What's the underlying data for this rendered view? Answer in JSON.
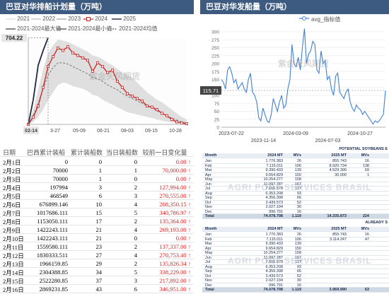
{
  "panel1": {
    "title": "巴豆对华排船计划量（万吨）",
    "legend": [
      {
        "label": "2021",
        "color": "#e0e0e0",
        "style": "line"
      },
      {
        "label": "2022",
        "color": "#c8c8c8",
        "style": "line"
      },
      {
        "label": "2023",
        "color": "#aaaaaa",
        "style": "line"
      },
      {
        "label": "2024",
        "color": "#cc2222",
        "style": "marker"
      },
      {
        "label": "2025",
        "color": "#1f2a44",
        "style": "line"
      },
      {
        "label": "2021-2024最大值",
        "color": "#555555",
        "style": "line"
      },
      {
        "label": "2021-2024最小值",
        "color": "#555555",
        "style": "line"
      },
      {
        "label": "2021-2024均值",
        "color": "#555555",
        "style": "dashed"
      }
    ],
    "pointer_label": "704.22",
    "current_label": "02-14",
    "watermark": "紫金天风期货"
  },
  "panel2": {
    "title": "巴豆对华发船量（万吨）",
    "legend_label": "avg_指标值",
    "pointer_label": "115.71",
    "watermark": "紫金天风期货"
  },
  "shipment_table": {
    "headers": [
      "日期",
      "巴西累计装船",
      "累计装船数",
      "当日装船数",
      "较前一日变化量"
    ],
    "arrow": "↑",
    "rows": [
      {
        "date": "2月1日",
        "cum": "0",
        "count": "0",
        "daily": "0",
        "change": "0.00"
      },
      {
        "date": "2月2日",
        "cum": "70000",
        "count": "1",
        "daily": "1",
        "change": "70,000.00"
      },
      {
        "date": "2月3日",
        "cum": "70000",
        "count": "1",
        "daily": "0",
        "change": "0.00"
      },
      {
        "date": "2月4日",
        "cum": "197994",
        "count": "3",
        "daily": "2",
        "change": "127,994.00"
      },
      {
        "date": "2月5日",
        "cum": "468549",
        "count": "6",
        "daily": "3",
        "change": "270,555.00"
      },
      {
        "date": "2月6日",
        "cum": "676899.146",
        "count": "10",
        "daily": "4",
        "change": "208,350.15"
      },
      {
        "date": "2月7日",
        "cum": "1017686.111",
        "count": "15",
        "daily": "5",
        "change": "340,786.97"
      },
      {
        "date": "2月8日",
        "cum": "1153050.111",
        "count": "17",
        "daily": "2",
        "change": "135,364.00"
      },
      {
        "date": "2月9日",
        "cum": "1422243.111",
        "count": "21",
        "daily": "4",
        "change": "269,193.00"
      },
      {
        "date": "2月10日",
        "cum": "1422243.111",
        "count": "21",
        "daily": "0",
        "change": "0.00"
      },
      {
        "date": "2月11日",
        "cum": "1559580.111",
        "count": "23",
        "daily": "2",
        "change": "137,337.00"
      },
      {
        "date": "2月12日",
        "cum": "1830333.511",
        "count": "27",
        "daily": "4",
        "change": "270,753.40"
      },
      {
        "date": "2月13日",
        "cum": "1966159.85",
        "count": "29",
        "daily": "2",
        "change": "135,826.34"
      },
      {
        "date": "2月14日",
        "cum": "2304388.85",
        "count": "34",
        "daily": "5",
        "change": "338,229.00"
      },
      {
        "date": "2月15日",
        "cum": "2522280.85",
        "count": "37",
        "daily": "3",
        "change": "217,892.00"
      },
      {
        "date": "2月16日",
        "cum": "2869231.85",
        "count": "43",
        "daily": "6",
        "change": "346,951.00"
      }
    ]
  },
  "port_table_1": {
    "title": "POTENTIAL SOYBEANS E",
    "headers": [
      "Month",
      "2024 MT",
      "MVs",
      "2025 MT",
      "MVs"
    ],
    "rows": [
      [
        "Jan",
        "1.776.383",
        "26",
        "855.743",
        "16"
      ],
      [
        "Feb",
        "7.115.011",
        "106",
        "8.920.734",
        "138"
      ],
      [
        "Mar",
        "9.390.433",
        "139",
        "4.529.396",
        "69"
      ],
      [
        "Apr",
        "9.654.829",
        "150",
        "30.000",
        "1"
      ],
      [
        "May",
        "10.254.277",
        "158",
        "",
        ""
      ],
      [
        "Jun",
        "11.097.787",
        "167",
        "",
        ""
      ],
      [
        "Jul",
        "7.616.578",
        "117",
        "",
        ""
      ],
      [
        "Aug",
        "6.353.208",
        "93",
        "",
        ""
      ],
      [
        "Sep",
        "4.356.398",
        "66",
        "",
        ""
      ],
      [
        "Oct",
        "3.439.573",
        "52",
        "",
        ""
      ],
      [
        "Nov",
        "2.027.194",
        "30",
        "",
        ""
      ],
      [
        "Dec",
        "996.791",
        "16",
        "",
        ""
      ],
      [
        "Total",
        "74.078.708",
        "1.119",
        "14.335.873",
        "224"
      ]
    ],
    "watermark": "AGRI PORT SERVICES BRASIL"
  },
  "port_table_2": {
    "title": "ALREADY S",
    "headers": [
      "Month",
      "2024 MT",
      "MVs",
      "2025 MT",
      "MVs"
    ],
    "rows": [
      [
        "Jan",
        "1.776.383",
        "26",
        "855.743",
        "16"
      ],
      [
        "Feb",
        "7.115.011",
        "106",
        "3.114.247",
        "47"
      ],
      [
        "Mar",
        "9.390.433",
        "139",
        "",
        ""
      ],
      [
        "Apr",
        "9.654.829",
        "150",
        "",
        ""
      ],
      [
        "May",
        "10.254.277",
        "158",
        "",
        ""
      ],
      [
        "Jun",
        "11.097.787",
        "167",
        "",
        ""
      ],
      [
        "Jul",
        "7.616.578",
        "117",
        "",
        ""
      ],
      [
        "Aug",
        "6.353.208",
        "93",
        "",
        ""
      ],
      [
        "Sep",
        "4.356.398",
        "66",
        "",
        ""
      ],
      [
        "Oct",
        "3.439.573",
        "52",
        "",
        ""
      ],
      [
        "Nov",
        "2.027.194",
        "30",
        "",
        ""
      ],
      [
        "Dec",
        "996.791",
        "16",
        "",
        ""
      ],
      [
        "Total",
        "74.078.708",
        "1.119",
        "3.969.990",
        "63"
      ]
    ],
    "watermark": "AGRI PORT SERVICES BRASIL"
  },
  "chart_data": [
    {
      "type": "line",
      "title": "巴豆对华排船计划量（万吨）",
      "x_ticks": [
        "02-14",
        "3-27",
        "05-09",
        "06-21",
        "08-03",
        "09-15",
        "10-28"
      ],
      "ylim": [
        0,
        700
      ],
      "series": [
        {
          "name": "2024",
          "values": [
            0,
            60,
            150,
            300,
            470,
            550,
            620,
            600,
            630,
            580,
            560,
            540,
            520,
            430,
            500,
            470,
            420,
            440,
            350,
            300,
            250,
            230,
            210,
            190,
            150,
            140,
            120,
            90,
            70,
            40,
            20,
            10,
            5
          ]
        },
        {
          "name": "2025",
          "values": [
            0,
            200,
            480,
            600,
            704
          ]
        },
        {
          "name": "2021-2024最大值",
          "values": [
            0,
            120,
            280,
            450,
            580,
            640,
            690,
            680,
            670,
            650,
            630,
            610,
            590,
            560,
            550,
            530,
            500,
            480,
            450,
            420,
            400,
            380,
            340,
            300,
            260,
            230,
            200,
            180,
            150,
            120,
            90,
            60,
            40
          ]
        },
        {
          "name": "2021-2024最小值",
          "values": [
            0,
            20,
            60,
            120,
            200,
            260,
            320,
            340,
            330,
            310,
            300,
            290,
            270,
            240,
            230,
            200,
            180,
            160,
            140,
            120,
            100,
            90,
            80,
            70,
            60,
            50,
            40,
            30,
            20,
            15,
            10,
            5,
            0
          ]
        },
        {
          "name": "2021-2024均值",
          "values": [
            0,
            70,
            170,
            290,
            400,
            460,
            500,
            500,
            490,
            470,
            450,
            430,
            410,
            380,
            370,
            350,
            320,
            300,
            280,
            250,
            230,
            210,
            190,
            170,
            150,
            130,
            110,
            90,
            70,
            50,
            35,
            20,
            10
          ]
        }
      ]
    },
    {
      "type": "line",
      "title": "巴豆对华发船量（万吨）",
      "x_ticks": [
        "2023-07-22",
        "2023-11-14",
        "2024-03-09",
        "2024-07-03",
        "2024-10-27"
      ],
      "y_ticks": [
        0,
        25,
        50,
        75,
        100,
        125,
        150,
        175,
        200,
        225,
        250,
        275,
        300
      ],
      "ylim": [
        0,
        320
      ],
      "series": [
        {
          "name": "avg_指标值",
          "values": [
            150,
            140,
            120,
            180,
            190,
            170,
            140,
            150,
            120,
            130,
            140,
            120,
            110,
            150,
            170,
            110,
            100,
            80,
            30,
            20,
            60,
            40,
            20,
            15,
            40,
            90,
            70,
            50,
            80,
            100,
            60,
            70,
            120,
            150,
            260,
            200,
            190,
            220,
            180,
            250,
            310,
            200,
            230,
            240,
            270,
            260,
            180,
            170,
            240,
            200,
            210,
            150,
            160,
            120,
            100,
            160,
            170,
            110,
            100,
            90,
            110,
            120,
            80,
            60,
            50,
            70,
            60,
            55,
            40,
            50,
            40,
            30,
            20,
            10,
            20,
            15,
            20,
            30,
            40,
            115.71
          ]
        }
      ]
    }
  ]
}
